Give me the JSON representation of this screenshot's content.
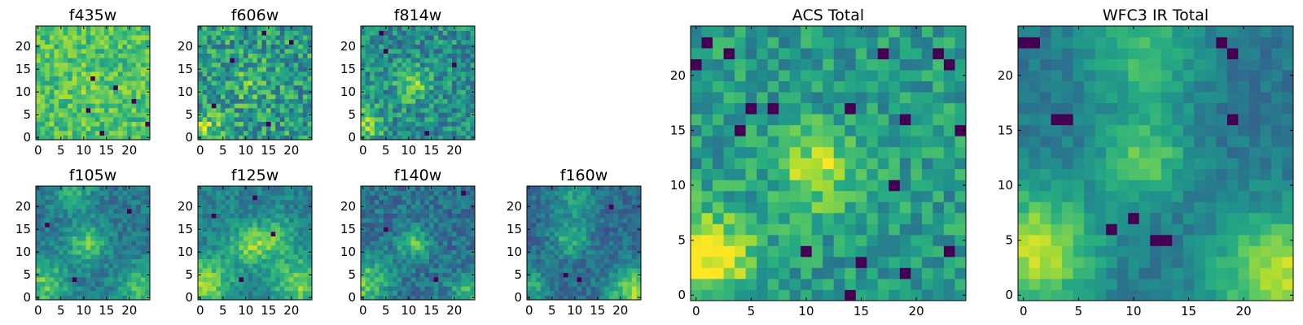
{
  "chart_data": [
    {
      "type": "heatmap",
      "title": "f435w",
      "grid": 25,
      "xticks": [
        0,
        5,
        10,
        15,
        20
      ],
      "yticks": [
        0,
        5,
        10,
        15,
        20
      ],
      "xlim": [
        0,
        24
      ],
      "ylim": [
        0,
        24
      ],
      "hotspots": [
        {
          "cx": 11.5,
          "cy": 11,
          "sigma": 3,
          "amp": 0.05
        }
      ],
      "noise": 0.16,
      "base": 0.72,
      "holes": [
        [
          12,
          13
        ],
        [
          11,
          6
        ],
        [
          14,
          1
        ],
        [
          17,
          11
        ],
        [
          24,
          3
        ],
        [
          21,
          8
        ]
      ],
      "seed": 11
    },
    {
      "type": "heatmap",
      "title": "f606w",
      "grid": 25,
      "xticks": [
        0,
        5,
        10,
        15,
        20
      ],
      "yticks": [
        0,
        5,
        10,
        15,
        20
      ],
      "xlim": [
        0,
        24
      ],
      "ylim": [
        0,
        24
      ],
      "hotspots": [
        {
          "cx": 1,
          "cy": 2,
          "sigma": 3,
          "amp": 0.25
        },
        {
          "cx": 11,
          "cy": 12,
          "sigma": 3,
          "amp": 0.15
        }
      ],
      "noise": 0.24,
      "base": 0.55,
      "holes": [
        [
          3,
          7
        ],
        [
          15,
          3
        ],
        [
          14,
          23
        ],
        [
          7,
          17
        ],
        [
          20,
          21
        ]
      ],
      "seed": 23
    },
    {
      "type": "heatmap",
      "title": "f814w",
      "grid": 25,
      "xticks": [
        0,
        5,
        10,
        15,
        20
      ],
      "yticks": [
        0,
        5,
        10,
        15,
        20
      ],
      "xlim": [
        0,
        24
      ],
      "ylim": [
        0,
        24
      ],
      "hotspots": [
        {
          "cx": 11,
          "cy": 11.5,
          "sigma": 2.5,
          "amp": 0.3
        },
        {
          "cx": 0,
          "cy": 3,
          "sigma": 3,
          "amp": 0.3
        }
      ],
      "noise": 0.2,
      "base": 0.5,
      "holes": [
        [
          4,
          23
        ],
        [
          14,
          1
        ],
        [
          20,
          16
        ],
        [
          5,
          19
        ]
      ],
      "seed": 37
    },
    {
      "type": "heatmap",
      "title": "f105w",
      "grid": 25,
      "xticks": [
        0,
        5,
        10,
        15,
        20
      ],
      "yticks": [
        0,
        5,
        10,
        15,
        20
      ],
      "xlim": [
        0,
        24
      ],
      "ylim": [
        0,
        24
      ],
      "hotspots": [
        {
          "cx": 11,
          "cy": 12,
          "sigma": 3,
          "amp": 0.35
        },
        {
          "cx": 1,
          "cy": 3,
          "sigma": 4,
          "amp": 0.35
        },
        {
          "cx": 23,
          "cy": 2,
          "sigma": 4,
          "amp": 0.3
        },
        {
          "cx": 8,
          "cy": 23,
          "sigma": 3,
          "amp": 0.25
        }
      ],
      "noise": 0.12,
      "base": 0.4,
      "holes": [
        [
          20,
          19
        ],
        [
          8,
          4
        ],
        [
          2,
          16
        ]
      ],
      "seed": 41
    },
    {
      "type": "heatmap",
      "title": "f125w",
      "grid": 25,
      "xticks": [
        0,
        5,
        10,
        15,
        20
      ],
      "yticks": [
        0,
        5,
        10,
        15,
        20
      ],
      "xlim": [
        0,
        24
      ],
      "ylim": [
        0,
        24
      ],
      "hotspots": [
        {
          "cx": 11,
          "cy": 11.5,
          "sigma": 3,
          "amp": 0.35
        },
        {
          "cx": 1,
          "cy": 3,
          "sigma": 4,
          "amp": 0.4
        },
        {
          "cx": 22,
          "cy": 3,
          "sigma": 4,
          "amp": 0.35
        },
        {
          "cx": 17,
          "cy": 13,
          "sigma": 3,
          "amp": 0.25
        }
      ],
      "noise": 0.12,
      "base": 0.45,
      "holes": [
        [
          3,
          18
        ],
        [
          12,
          22
        ],
        [
          16,
          14
        ],
        [
          9,
          4
        ]
      ],
      "seed": 53
    },
    {
      "type": "heatmap",
      "title": "f140w",
      "grid": 25,
      "xticks": [
        0,
        5,
        10,
        15,
        20
      ],
      "yticks": [
        0,
        5,
        10,
        15,
        20
      ],
      "xlim": [
        0,
        24
      ],
      "ylim": [
        0,
        24
      ],
      "hotspots": [
        {
          "cx": 11,
          "cy": 12,
          "sigma": 2.5,
          "amp": 0.35
        },
        {
          "cx": 0,
          "cy": 3,
          "sigma": 4,
          "amp": 0.4
        },
        {
          "cx": 23,
          "cy": 1,
          "sigma": 3,
          "amp": 0.3
        }
      ],
      "noise": 0.14,
      "base": 0.38,
      "holes": [
        [
          22,
          23
        ],
        [
          5,
          15
        ],
        [
          16,
          4
        ]
      ],
      "seed": 67
    },
    {
      "type": "heatmap",
      "title": "f160w",
      "grid": 25,
      "xticks": [
        0,
        5,
        10,
        15,
        20
      ],
      "yticks": [
        0,
        5,
        10,
        15,
        20
      ],
      "xlim": [
        0,
        24
      ],
      "ylim": [
        0,
        24
      ],
      "hotspots": [
        {
          "cx": 9,
          "cy": 13,
          "sigma": 3,
          "amp": 0.3
        },
        {
          "cx": 23,
          "cy": 1,
          "sigma": 4,
          "amp": 0.5
        },
        {
          "cx": 0,
          "cy": 3,
          "sigma": 3,
          "amp": 0.3
        },
        {
          "cx": 10,
          "cy": 22,
          "sigma": 3,
          "amp": 0.25
        }
      ],
      "noise": 0.12,
      "base": 0.35,
      "holes": [
        [
          8,
          5
        ],
        [
          11,
          4
        ],
        [
          18,
          20
        ]
      ],
      "seed": 79
    },
    {
      "type": "heatmap",
      "title": "ACS Total",
      "grid": 25,
      "xticks": [
        0,
        5,
        10,
        15,
        20
      ],
      "yticks": [
        0,
        5,
        10,
        15,
        20
      ],
      "xlim": [
        0,
        24
      ],
      "ylim": [
        0,
        24
      ],
      "hotspots": [
        {
          "cx": 11,
          "cy": 11.5,
          "sigma": 2.5,
          "amp": 0.35
        },
        {
          "cx": 1,
          "cy": 3.5,
          "sigma": 2.8,
          "amp": 0.5
        }
      ],
      "noise": 0.16,
      "base": 0.55,
      "holes": [
        [
          1,
          23
        ],
        [
          0,
          21
        ],
        [
          7,
          17
        ],
        [
          5,
          17
        ],
        [
          18,
          10
        ],
        [
          4,
          15
        ],
        [
          19,
          16
        ],
        [
          14,
          17
        ],
        [
          22,
          22
        ],
        [
          23,
          21
        ],
        [
          17,
          22
        ],
        [
          3,
          22
        ],
        [
          10,
          4
        ],
        [
          19,
          2
        ],
        [
          23,
          4
        ],
        [
          14,
          0
        ],
        [
          15,
          3
        ],
        [
          24,
          15
        ]
      ],
      "seed": 97
    },
    {
      "type": "heatmap",
      "title": "WFC3 IR Total",
      "grid": 25,
      "xticks": [
        0,
        5,
        10,
        15,
        20
      ],
      "yticks": [
        0,
        5,
        10,
        15,
        20
      ],
      "xlim": [
        0,
        24
      ],
      "ylim": [
        0,
        24
      ],
      "hotspots": [
        {
          "cx": 11,
          "cy": 12.5,
          "sigma": 2.8,
          "amp": 0.35
        },
        {
          "cx": 1,
          "cy": 4,
          "sigma": 4,
          "amp": 0.5
        },
        {
          "cx": 23,
          "cy": 2,
          "sigma": 4,
          "amp": 0.5
        },
        {
          "cx": 11,
          "cy": 22,
          "sigma": 3.5,
          "amp": 0.3
        }
      ],
      "noise": 0.08,
      "base": 0.4,
      "holes": [
        [
          1,
          23
        ],
        [
          0,
          23
        ],
        [
          4,
          16
        ],
        [
          3,
          16
        ],
        [
          19,
          16
        ],
        [
          8,
          6
        ],
        [
          12,
          5
        ],
        [
          13,
          5
        ],
        [
          10,
          7
        ],
        [
          18,
          23
        ],
        [
          19,
          22
        ]
      ],
      "seed": 131
    }
  ]
}
